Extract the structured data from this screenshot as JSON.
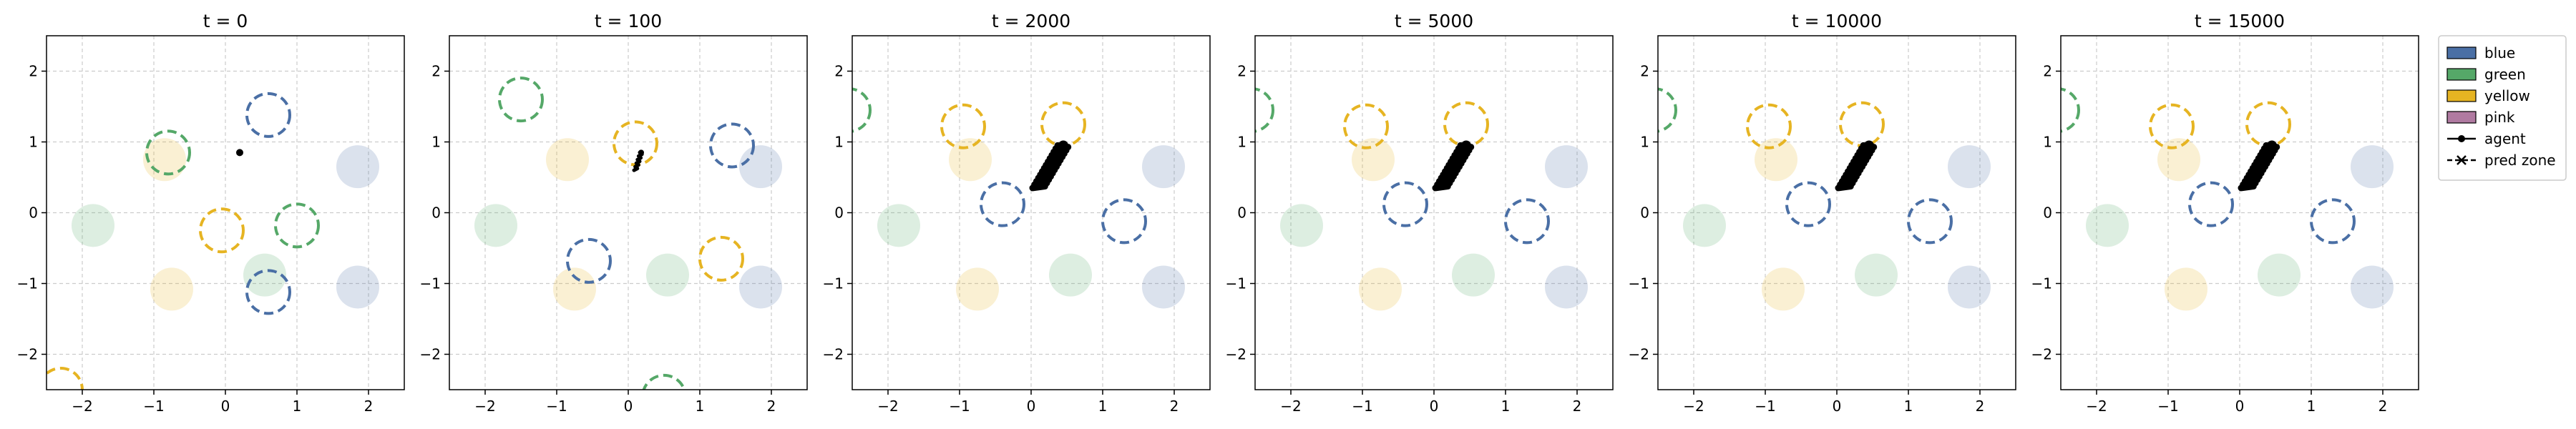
{
  "chart_data": {
    "type": "scatter",
    "grid": true,
    "legend_position": "outside right, top",
    "colors": {
      "blue": "#4a6fa5",
      "green": "#55a868",
      "yellow": "#e6b422",
      "pink": "#b07aa1",
      "agent": "#000000",
      "grid": "#cccccc"
    },
    "legend": [
      {
        "label": "blue",
        "type": "patch",
        "color": "#4a6fa5"
      },
      {
        "label": "green",
        "type": "patch",
        "color": "#55a868"
      },
      {
        "label": "yellow",
        "type": "patch",
        "color": "#e6b422"
      },
      {
        "label": "pink",
        "type": "patch",
        "color": "#b07aa1"
      },
      {
        "label": "agent",
        "type": "line-dot"
      },
      {
        "label": "pred zone",
        "type": "line-dash-x"
      }
    ],
    "xlim": [
      -2.5,
      2.5
    ],
    "ylim": [
      -2.5,
      2.5
    ],
    "xticks": [
      -2,
      -1,
      0,
      1,
      2
    ],
    "yticks": [
      -2,
      -1,
      0,
      1,
      2
    ],
    "zone_radius": 0.3,
    "static_zones": [
      {
        "color": "green",
        "x": -1.85,
        "y": -0.18
      },
      {
        "color": "yellow",
        "x": -0.85,
        "y": 0.75
      },
      {
        "color": "yellow",
        "x": -0.75,
        "y": -1.08
      },
      {
        "color": "green",
        "x": 0.55,
        "y": -0.88
      },
      {
        "color": "blue",
        "x": 1.85,
        "y": 0.65
      },
      {
        "color": "blue",
        "x": 1.85,
        "y": -1.05
      }
    ],
    "panels": [
      {
        "title": "t = 0",
        "pred_zones": [
          {
            "color": "blue",
            "x": 0.6,
            "y": 1.38
          },
          {
            "color": "green",
            "x": -0.8,
            "y": 0.85
          },
          {
            "color": "yellow",
            "x": -0.05,
            "y": -0.25
          },
          {
            "color": "green",
            "x": 1.0,
            "y": -0.18
          },
          {
            "color": "blue",
            "x": 0.6,
            "y": -1.12
          },
          {
            "color": "yellow",
            "x": -2.3,
            "y": -2.5
          }
        ],
        "agent": {
          "start": [
            0.2,
            0.85
          ],
          "end": [
            0.2,
            0.85
          ]
        }
      },
      {
        "title": "t = 100",
        "pred_zones": [
          {
            "color": "green",
            "x": -1.5,
            "y": 1.6
          },
          {
            "color": "yellow",
            "x": 0.1,
            "y": 0.98
          },
          {
            "color": "blue",
            "x": 1.45,
            "y": 0.95
          },
          {
            "color": "blue",
            "x": -0.55,
            "y": -0.68
          },
          {
            "color": "yellow",
            "x": 1.3,
            "y": -0.65
          },
          {
            "color": "green",
            "x": 0.5,
            "y": -2.6
          }
        ],
        "agent": {
          "start": [
            0.1,
            0.6
          ],
          "end": [
            0.18,
            0.85
          ]
        }
      },
      {
        "title": "t = 2000",
        "pred_zones": [
          {
            "color": "green",
            "x": -2.55,
            "y": 1.45
          },
          {
            "color": "yellow",
            "x": -0.95,
            "y": 1.22
          },
          {
            "color": "yellow",
            "x": 0.45,
            "y": 1.25
          },
          {
            "color": "blue",
            "x": -0.4,
            "y": 0.12
          },
          {
            "color": "blue",
            "x": 1.3,
            "y": -0.12
          }
        ],
        "agent": {
          "start": [
            0.1,
            0.35
          ],
          "end": [
            0.45,
            0.95
          ]
        }
      },
      {
        "title": "t = 5000",
        "pred_zones": [
          {
            "color": "green",
            "x": -2.55,
            "y": 1.45
          },
          {
            "color": "yellow",
            "x": -0.95,
            "y": 1.22
          },
          {
            "color": "yellow",
            "x": 0.45,
            "y": 1.25
          },
          {
            "color": "blue",
            "x": -0.4,
            "y": 0.12
          },
          {
            "color": "blue",
            "x": 1.3,
            "y": -0.12
          }
        ],
        "agent": {
          "start": [
            0.1,
            0.35
          ],
          "end": [
            0.45,
            0.95
          ]
        }
      },
      {
        "title": "t = 10000",
        "pred_zones": [
          {
            "color": "green",
            "x": -2.55,
            "y": 1.45
          },
          {
            "color": "yellow",
            "x": -0.95,
            "y": 1.22
          },
          {
            "color": "yellow",
            "x": 0.35,
            "y": 1.25
          },
          {
            "color": "blue",
            "x": -0.4,
            "y": 0.12
          },
          {
            "color": "blue",
            "x": 1.3,
            "y": -0.12
          }
        ],
        "agent": {
          "start": [
            0.1,
            0.35
          ],
          "end": [
            0.45,
            0.95
          ]
        }
      },
      {
        "title": "t = 15000",
        "pred_zones": [
          {
            "color": "green",
            "x": -2.55,
            "y": 1.45
          },
          {
            "color": "yellow",
            "x": -0.95,
            "y": 1.22
          },
          {
            "color": "yellow",
            "x": 0.4,
            "y": 1.25
          },
          {
            "color": "blue",
            "x": -0.4,
            "y": 0.12
          },
          {
            "color": "blue",
            "x": 1.3,
            "y": -0.12
          }
        ],
        "agent": {
          "start": [
            0.1,
            0.35
          ],
          "end": [
            0.45,
            0.95
          ]
        }
      }
    ]
  }
}
